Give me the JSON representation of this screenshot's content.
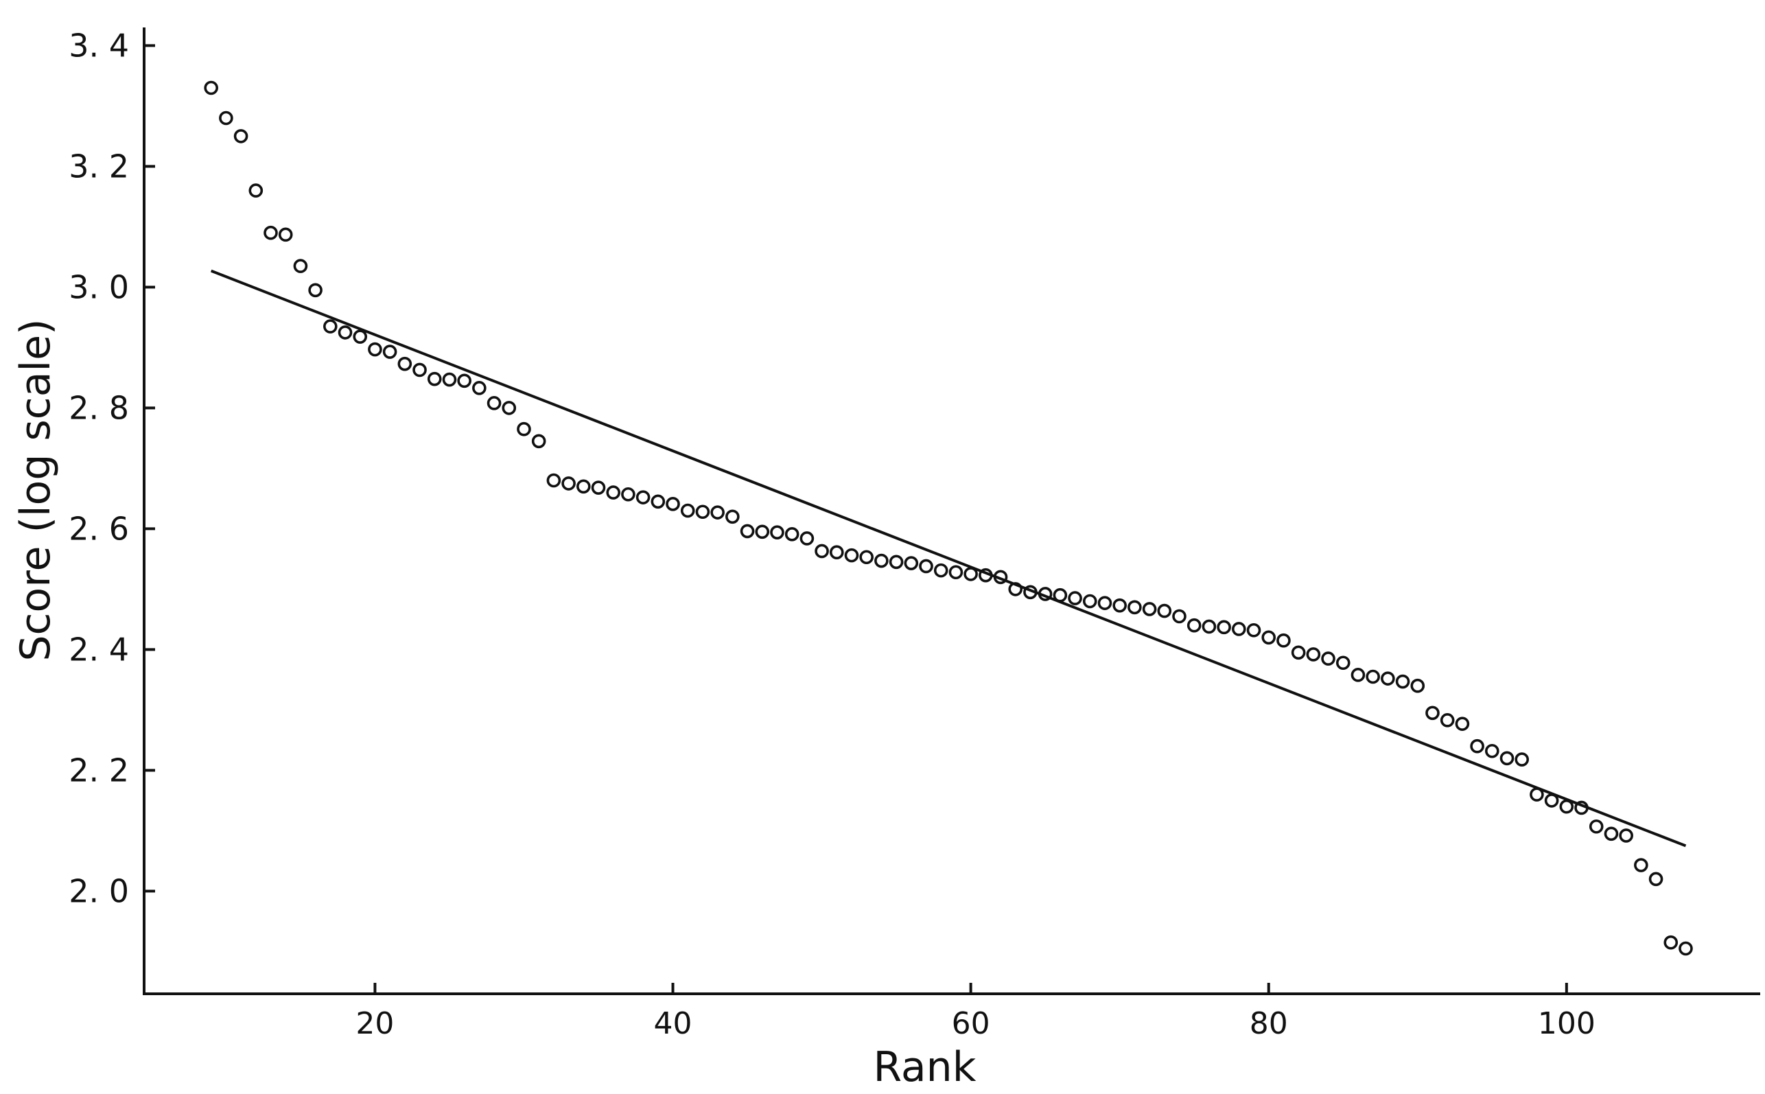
{
  "chart_data": {
    "type": "scatter",
    "title": "",
    "xlabel": "Rank",
    "ylabel": "Score (log scale)",
    "xlim": [
      4.5,
      113
    ],
    "ylim": [
      1.83,
      3.43
    ],
    "x_ticks": [
      20,
      40,
      60,
      80,
      100
    ],
    "x_tick_labels": [
      "20",
      "40",
      "60",
      "80",
      "100"
    ],
    "y_ticks": [
      2.0,
      2.2,
      2.4,
      2.6,
      2.8,
      3.0,
      3.2,
      3.4
    ],
    "y_tick_labels": [
      "2. 0",
      "2. 2",
      "2. 4",
      "2. 6",
      "2. 8",
      "3. 0",
      "3. 2",
      "3. 4"
    ],
    "grid": false,
    "legend": "none",
    "series": [
      {
        "marker": "open-circle",
        "x": [
          9,
          10,
          11,
          12,
          13,
          14,
          15,
          16,
          17,
          18,
          19,
          20,
          21,
          22,
          23,
          24,
          25,
          26,
          27,
          28,
          29,
          30,
          31,
          32,
          33,
          34,
          35,
          36,
          37,
          38,
          39,
          40,
          41,
          42,
          43,
          44,
          45,
          46,
          47,
          48,
          49,
          50,
          51,
          52,
          53,
          54,
          55,
          56,
          57,
          58,
          59,
          60,
          61,
          62,
          63,
          64,
          65,
          66,
          67,
          68,
          69,
          70,
          71,
          72,
          73,
          74,
          75,
          76,
          77,
          78,
          79,
          80,
          81,
          82,
          83,
          84,
          85,
          86,
          87,
          88,
          89,
          90,
          91,
          92,
          93,
          94,
          95,
          96,
          97,
          98,
          99,
          100,
          101,
          102,
          103,
          104,
          105,
          106,
          107,
          108
        ],
        "y": [
          3.33,
          3.28,
          3.25,
          3.16,
          3.09,
          3.087,
          3.035,
          2.995,
          2.935,
          2.925,
          2.918,
          2.897,
          2.893,
          2.873,
          2.863,
          2.848,
          2.847,
          2.845,
          2.833,
          2.808,
          2.8,
          2.765,
          2.745,
          2.68,
          2.675,
          2.67,
          2.668,
          2.66,
          2.657,
          2.652,
          2.645,
          2.641,
          2.63,
          2.628,
          2.627,
          2.62,
          2.596,
          2.595,
          2.594,
          2.591,
          2.584,
          2.563,
          2.561,
          2.556,
          2.553,
          2.547,
          2.545,
          2.543,
          2.538,
          2.531,
          2.528,
          2.525,
          2.523,
          2.52,
          2.5,
          2.495,
          2.492,
          2.49,
          2.485,
          2.48,
          2.477,
          2.473,
          2.47,
          2.467,
          2.464,
          2.455,
          2.44,
          2.438,
          2.437,
          2.434,
          2.432,
          2.42,
          2.415,
          2.395,
          2.392,
          2.385,
          2.378,
          2.358,
          2.355,
          2.352,
          2.347,
          2.34,
          2.295,
          2.283,
          2.277,
          2.24,
          2.232,
          2.22,
          2.218,
          2.16,
          2.15,
          2.14,
          2.138,
          2.107,
          2.095,
          2.092,
          2.043,
          2.02,
          1.915,
          1.905
        ]
      }
    ],
    "trendline": {
      "x": [
        9,
        108
      ],
      "y": [
        3.027,
        2.075
      ]
    }
  }
}
